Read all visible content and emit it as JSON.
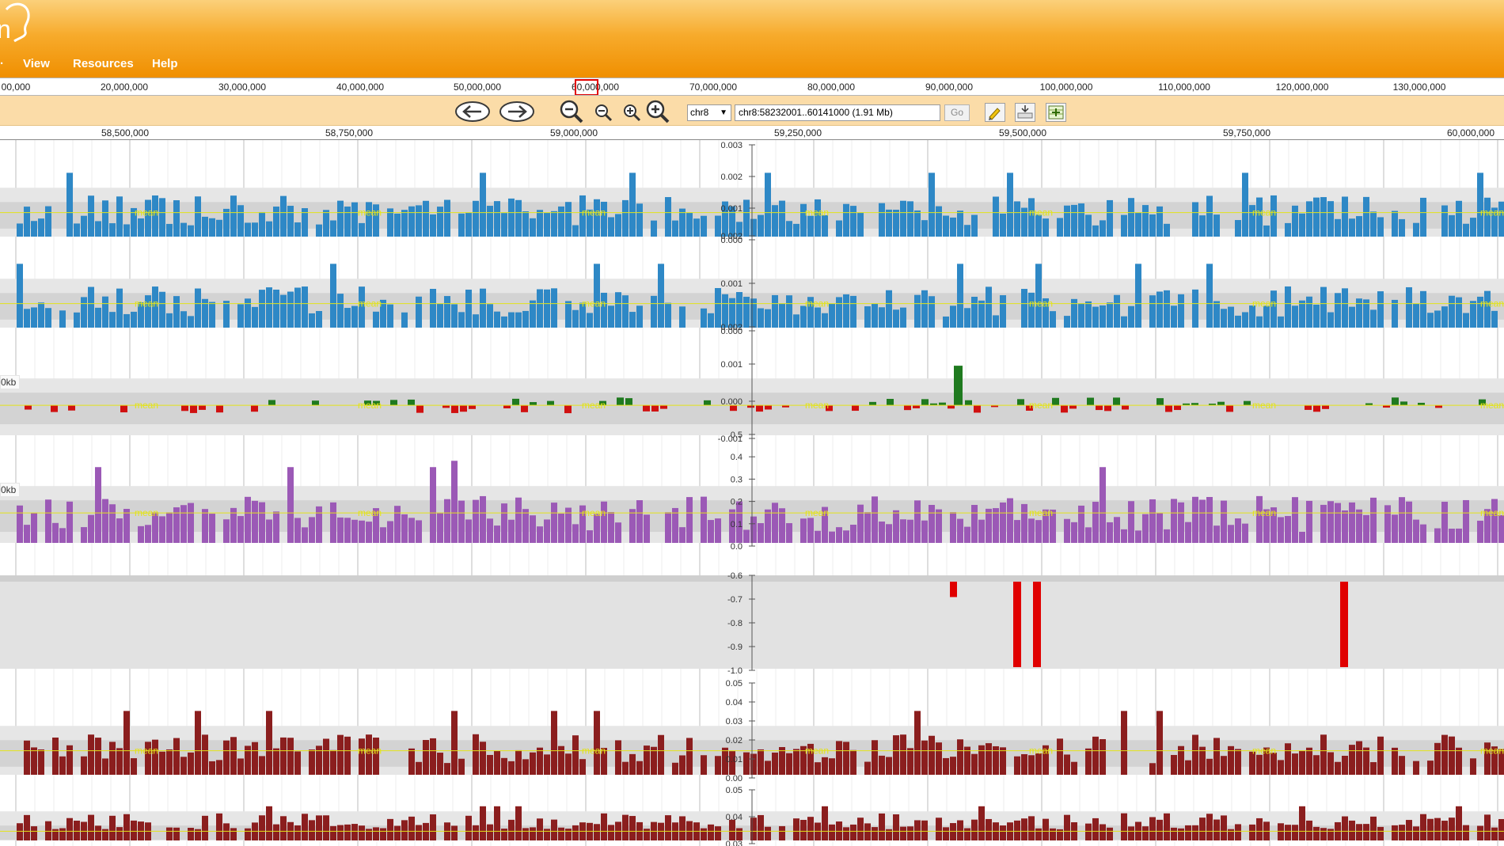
{
  "header": {
    "logo_fragment": "n",
    "menu": [
      {
        "label": "View"
      },
      {
        "label": "Resources"
      },
      {
        "label": "Help"
      }
    ]
  },
  "overview": {
    "ticks": [
      "00,000",
      "20,000,000",
      "30,000,000",
      "40,000,000",
      "50,000,000",
      "60,000,000",
      "70,000,000",
      "80,000,000",
      "90,000,000",
      "100,000,000",
      "110,000,000",
      "120,000,000",
      "130,000,000"
    ]
  },
  "navbar": {
    "chromosome": "chr8",
    "location": "chr8:58232001..60141000 (1.91 Mb)",
    "go_label": "Go"
  },
  "ruler": {
    "ticks": [
      "58,500,000",
      "58,750,000",
      "59,000,000",
      "59,250,000",
      "59,500,000",
      "59,750,000",
      "60,000,000"
    ]
  },
  "tracks": [
    {
      "id": "t1",
      "type": "positive",
      "color": "#2e88c6",
      "ticks": [
        "0.003",
        "0.002",
        "0.001",
        "0.000"
      ],
      "seed": 11,
      "mean_label": "mean"
    },
    {
      "id": "t2",
      "type": "positive",
      "color": "#2e88c6",
      "ticks": [
        "0.002",
        "0.001",
        "0.000"
      ],
      "seed": 23,
      "mean_label": "mean"
    },
    {
      "id": "t3",
      "type": "diverging",
      "pos_color": "#1f7a1f",
      "neg_color": "#d01010",
      "ticks": [
        "0.002",
        "0.001",
        "0.000",
        "-0.001"
      ],
      "seed": 37,
      "tag": "0kb",
      "mean_label": "mean"
    },
    {
      "id": "t4",
      "type": "positive",
      "color": "#9b59b6",
      "ticks": [
        "0.5",
        "0.4",
        "0.3",
        "0.2",
        "0.1",
        "0.0"
      ],
      "seed": 41,
      "tag": "0kb",
      "mean_label": "mean"
    },
    {
      "id": "t5",
      "type": "negative",
      "color": "#e00000",
      "ticks": [
        "-0.6",
        "-0.7",
        "-0.8",
        "-0.9",
        "-1.0"
      ],
      "seed": 0
    },
    {
      "id": "t6",
      "type": "positive",
      "color": "#8b1e1e",
      "ticks": [
        "0.05",
        "0.04",
        "0.03",
        "0.02",
        "0.01",
        "0.00"
      ],
      "seed": 53,
      "mean_label": "mean"
    },
    {
      "id": "t7",
      "type": "positive",
      "color": "#8b1e1e",
      "ticks": [
        "0.05",
        "0.04",
        "0.03"
      ],
      "seed": 67
    }
  ],
  "colors": {
    "header_top": "#fbd07a",
    "header_bottom": "#f08f00",
    "navbar": "#fbdca8",
    "mean_line": "#e3e31a",
    "band": "#d3d3d3"
  }
}
